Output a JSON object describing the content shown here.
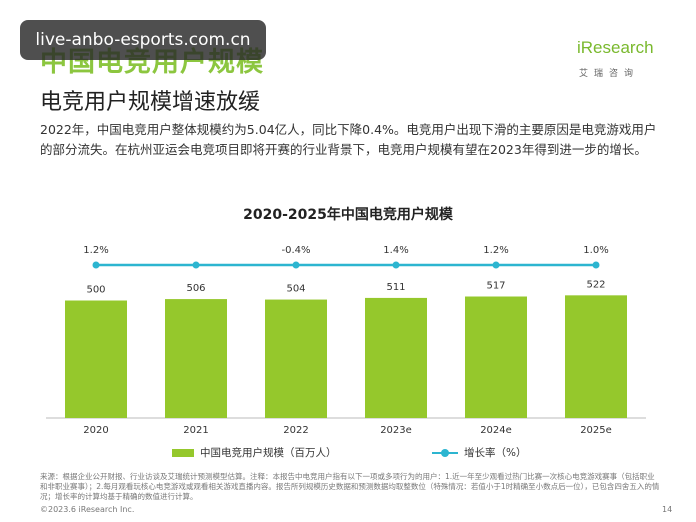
{
  "watermark": "live-anbo-esports.com.cn",
  "section_title": "中国电竞用户规模",
  "logo": {
    "word": "iResearch",
    "sub": "艾瑞咨询"
  },
  "subtitle": "电竞用户规模增速放缓",
  "description": "2022年，中国电竞用户整体规模约为5.04亿人，同比下降0.4%。电竞用户出现下滑的主要原因是电竞游戏用户的部分流失。在杭州亚运会电竞项目即将开赛的行业背景下，电竞用户规模有望在2023年得到进一步的增长。",
  "chart_data": {
    "type": "bar",
    "title": "2020-2025年中国电竞用户规模",
    "categories": [
      "2020",
      "2021",
      "2022",
      "2023e",
      "2024e",
      "2025e"
    ],
    "series": [
      {
        "name": "中国电竞用户规模（百万人）",
        "type": "bar",
        "values": [
          500,
          506,
          504,
          511,
          517,
          522
        ],
        "labels": [
          "500",
          "506",
          "504",
          "511",
          "517",
          "522"
        ]
      },
      {
        "name": "增长率（%）",
        "type": "line",
        "values": [
          1.2,
          1.2,
          -0.4,
          1.4,
          1.2,
          1.0
        ],
        "labels": [
          "1.2%",
          "",
          "-0.4%",
          "1.4%",
          "1.2%",
          "1.0%"
        ]
      }
    ],
    "colors": {
      "bar": "#95c82c",
      "line": "#2cb5d0"
    },
    "legend_position": "bottom"
  },
  "footnote": "来源：根据企业公开财报、行业访谈及艾瑞统计预测模型估算。注释：本报告中电竞用户指有以下一项或多项行为的用户：1.近一年至少观看过热门比赛一次核心电竞游戏赛事（包括职业和非职业赛事）；2.每月观看玩核心电竞游戏或观看相关游戏直播内容。报告所列规模历史数据和预测数据均取整数位（特殊情况：若值小于1时精确至小数点后一位），已包含四舍五入的情况；增长率的计算均基于精确的数值进行计算。",
  "copyright": "©2023.6 iResearch Inc.",
  "page_number": "14"
}
